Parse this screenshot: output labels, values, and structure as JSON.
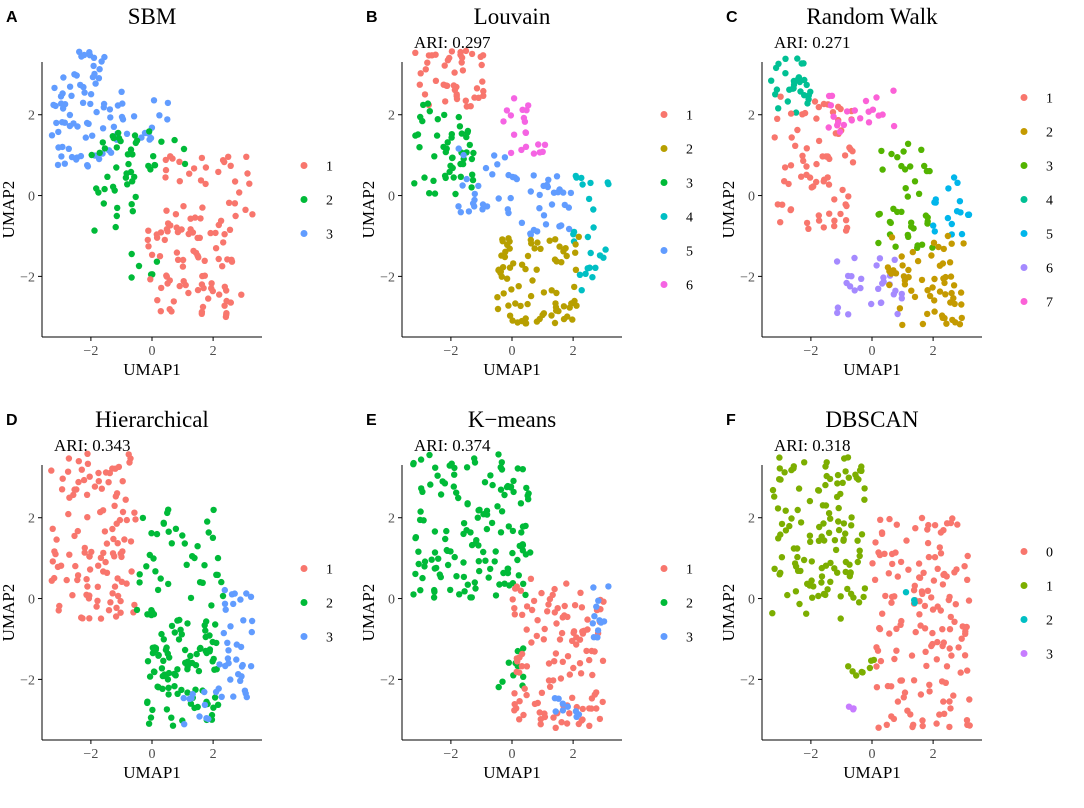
{
  "chart_data": [
    {
      "panel": "A",
      "type": "scatter",
      "title": "SBM",
      "ari": "",
      "xlabel": "UMAP1",
      "ylabel": "UMAP2",
      "xlim": [
        -3.6,
        3.6
      ],
      "ylim": [
        -3.5,
        3.8
      ],
      "xticks": [
        "-2",
        "0",
        "2"
      ],
      "yticks": [
        "-2",
        "0",
        "2"
      ],
      "legend": [
        "1",
        "2",
        "3"
      ],
      "colors": [
        "#F8766D",
        "#00BA38",
        "#619CFF"
      ],
      "regions": [
        {
          "cluster": 3,
          "x": [
            -3.3,
            -1.3
          ],
          "y": [
            0.7,
            3.6
          ],
          "n": 70
        },
        {
          "cluster": 3,
          "x": [
            -1.3,
            0.6
          ],
          "y": [
            1.3,
            2.6
          ],
          "n": 20
        },
        {
          "cluster": 2,
          "x": [
            -2.0,
            -0.4
          ],
          "y": [
            -0.9,
            1.6
          ],
          "n": 38
        },
        {
          "cluster": 2,
          "x": [
            -0.6,
            1.3
          ],
          "y": [
            0.5,
            1.6
          ],
          "n": 10
        },
        {
          "cluster": 2,
          "x": [
            -0.8,
            0.2
          ],
          "y": [
            -2.2,
            -1.4
          ],
          "n": 6
        },
        {
          "cluster": 1,
          "x": [
            0.4,
            3.3
          ],
          "y": [
            -0.8,
            1.0
          ],
          "n": 40
        },
        {
          "cluster": 1,
          "x": [
            -0.2,
            3.0
          ],
          "y": [
            -3.2,
            -0.8
          ],
          "n": 75
        }
      ]
    },
    {
      "panel": "B",
      "type": "scatter",
      "title": "Louvain",
      "ari": "ARI: 0.297",
      "xlabel": "UMAP1",
      "ylabel": "UMAP2",
      "xlim": [
        -3.6,
        3.6
      ],
      "ylim": [
        -3.5,
        3.8
      ],
      "xticks": [
        "-2",
        "0",
        "2"
      ],
      "yticks": [
        "-2",
        "0",
        "2"
      ],
      "legend": [
        "1",
        "2",
        "3",
        "4",
        "5",
        "6"
      ],
      "colors": [
        "#F8766D",
        "#B79F00",
        "#00BA38",
        "#00BFC4",
        "#619CFF",
        "#F564E3"
      ],
      "regions": [
        {
          "cluster": 1,
          "x": [
            -3.3,
            -0.8
          ],
          "y": [
            2.2,
            3.6
          ],
          "n": 45
        },
        {
          "cluster": 3,
          "x": [
            -3.2,
            -1.2
          ],
          "y": [
            0.0,
            2.3
          ],
          "n": 50
        },
        {
          "cluster": 5,
          "x": [
            -1.8,
            0.0
          ],
          "y": [
            -0.5,
            1.2
          ],
          "n": 25
        },
        {
          "cluster": 5,
          "x": [
            0.0,
            2.0
          ],
          "y": [
            -1.0,
            0.5
          ],
          "n": 30
        },
        {
          "cluster": 6,
          "x": [
            -0.3,
            1.2
          ],
          "y": [
            1.0,
            2.5
          ],
          "n": 20
        },
        {
          "cluster": 4,
          "x": [
            2.0,
            3.2
          ],
          "y": [
            -2.4,
            0.5
          ],
          "n": 25
        },
        {
          "cluster": 2,
          "x": [
            -0.5,
            2.2
          ],
          "y": [
            -3.2,
            -1.0
          ],
          "n": 80
        }
      ]
    },
    {
      "panel": "C",
      "type": "scatter",
      "title": "Random Walk",
      "ari": "ARI: 0.271",
      "xlabel": "UMAP1",
      "ylabel": "UMAP2",
      "xlim": [
        -3.6,
        3.6
      ],
      "ylim": [
        -3.5,
        3.8
      ],
      "xticks": [
        "-2",
        "0",
        "2"
      ],
      "yticks": [
        "-2",
        "0",
        "2"
      ],
      "legend": [
        "1",
        "2",
        "3",
        "4",
        "5",
        "6",
        "7"
      ],
      "colors": [
        "#F8766D",
        "#C49A00",
        "#53B400",
        "#00C094",
        "#00B6EB",
        "#A58AFF",
        "#FB61D7"
      ],
      "regions": [
        {
          "cluster": 4,
          "x": [
            -3.3,
            -2.0
          ],
          "y": [
            2.0,
            3.6
          ],
          "n": 30
        },
        {
          "cluster": 1,
          "x": [
            -3.2,
            -0.6
          ],
          "y": [
            -1.0,
            2.5
          ],
          "n": 75
        },
        {
          "cluster": 7,
          "x": [
            -1.5,
            0.8
          ],
          "y": [
            1.5,
            2.6
          ],
          "n": 22
        },
        {
          "cluster": 3,
          "x": [
            0.2,
            2.0
          ],
          "y": [
            -1.3,
            1.3
          ],
          "n": 40
        },
        {
          "cluster": 5,
          "x": [
            2.0,
            3.2
          ],
          "y": [
            -1.0,
            0.5
          ],
          "n": 18
        },
        {
          "cluster": 6,
          "x": [
            -1.2,
            1.0
          ],
          "y": [
            -3.0,
            -1.5
          ],
          "n": 30
        },
        {
          "cluster": 2,
          "x": [
            0.5,
            3.0
          ],
          "y": [
            -3.2,
            -1.0
          ],
          "n": 60
        }
      ]
    },
    {
      "panel": "D",
      "type": "scatter",
      "title": "Hierarchical",
      "ari": "ARI: 0.343",
      "xlabel": "UMAP1",
      "ylabel": "UMAP2",
      "xlim": [
        -3.6,
        3.6
      ],
      "ylim": [
        -3.5,
        3.8
      ],
      "xticks": [
        "-2",
        "0",
        "2"
      ],
      "yticks": [
        "-2",
        "0",
        "2"
      ],
      "legend": [
        "1",
        "2",
        "3"
      ],
      "colors": [
        "#F8766D",
        "#00BA38",
        "#619CFF"
      ],
      "regions": [
        {
          "cluster": 1,
          "x": [
            -3.3,
            -0.5
          ],
          "y": [
            -0.5,
            3.6
          ],
          "n": 115
        },
        {
          "cluster": 2,
          "x": [
            -0.5,
            2.4
          ],
          "y": [
            -0.5,
            2.2
          ],
          "n": 45
        },
        {
          "cluster": 2,
          "x": [
            -0.2,
            2.2
          ],
          "y": [
            -3.2,
            -0.5
          ],
          "n": 95
        },
        {
          "cluster": 3,
          "x": [
            2.2,
            3.3
          ],
          "y": [
            -2.5,
            0.3
          ],
          "n": 35
        },
        {
          "cluster": 3,
          "x": [
            1.0,
            2.2
          ],
          "y": [
            -3.2,
            -2.2
          ],
          "n": 12
        }
      ]
    },
    {
      "panel": "E",
      "type": "scatter",
      "title": "K−means",
      "ari": "ARI: 0.374",
      "xlabel": "UMAP1",
      "ylabel": "UMAP2",
      "xlim": [
        -3.6,
        3.6
      ],
      "ylim": [
        -3.5,
        3.8
      ],
      "xticks": [
        "-2",
        "0",
        "2"
      ],
      "yticks": [
        "-2",
        "0",
        "2"
      ],
      "legend": [
        "1",
        "2",
        "3"
      ],
      "colors": [
        "#F8766D",
        "#00BA38",
        "#619CFF"
      ],
      "regions": [
        {
          "cluster": 2,
          "x": [
            -3.3,
            0.6
          ],
          "y": [
            0.0,
            3.6
          ],
          "n": 140
        },
        {
          "cluster": 2,
          "x": [
            -0.6,
            0.4
          ],
          "y": [
            -2.2,
            -1.0
          ],
          "n": 10
        },
        {
          "cluster": 1,
          "x": [
            0.0,
            3.0
          ],
          "y": [
            -3.2,
            0.5
          ],
          "n": 120
        },
        {
          "cluster": 3,
          "x": [
            2.6,
            3.3
          ],
          "y": [
            -1.0,
            0.4
          ],
          "n": 12
        },
        {
          "cluster": 3,
          "x": [
            1.2,
            2.2
          ],
          "y": [
            -3.0,
            -2.4
          ],
          "n": 10
        }
      ]
    },
    {
      "panel": "F",
      "type": "scatter",
      "title": "DBSCAN",
      "ari": "ARI: 0.318",
      "xlabel": "UMAP1",
      "ylabel": "UMAP2",
      "xlim": [
        -3.6,
        3.6
      ],
      "ylim": [
        -3.5,
        3.8
      ],
      "xticks": [
        "-2",
        "0",
        "2"
      ],
      "yticks": [
        "-2",
        "0",
        "2"
      ],
      "legend": [
        "0",
        "1",
        "2",
        "3"
      ],
      "colors": [
        "#F8766D",
        "#7CAE00",
        "#00BFC4",
        "#C77CFF"
      ],
      "regions": [
        {
          "cluster": 1,
          "x": [
            -3.3,
            -0.2
          ],
          "y": [
            -0.5,
            3.6
          ],
          "n": 125
        },
        {
          "cluster": 1,
          "x": [
            -0.8,
            0.2
          ],
          "y": [
            -2.0,
            -1.5
          ],
          "n": 8
        },
        {
          "cluster": 0,
          "x": [
            0.0,
            3.2
          ],
          "y": [
            -3.2,
            2.0
          ],
          "n": 150
        },
        {
          "cluster": 2,
          "x": [
            1.0,
            1.5
          ],
          "y": [
            -0.2,
            0.3
          ],
          "n": 3
        },
        {
          "cluster": 3,
          "x": [
            -0.8,
            -0.5
          ],
          "y": [
            -2.8,
            -2.5
          ],
          "n": 3
        }
      ]
    }
  ]
}
